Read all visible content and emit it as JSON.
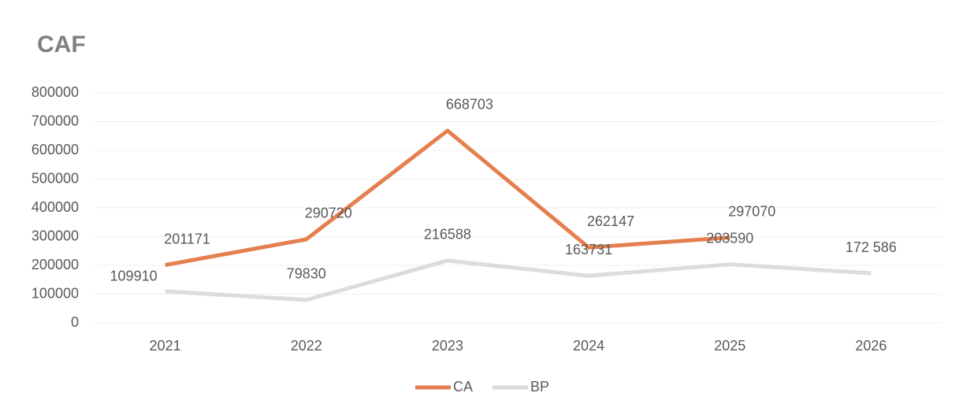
{
  "chart_data": {
    "type": "line",
    "title": "CAF",
    "categories": [
      "2021",
      "2022",
      "2023",
      "2024",
      "2025",
      "2026"
    ],
    "series": [
      {
        "name": "CA",
        "color": "#e4804f",
        "values": [
          201171,
          290720,
          668703,
          262147,
          297070,
          null
        ]
      },
      {
        "name": "BP",
        "color": "#dcdcdc",
        "values": [
          109910,
          79830,
          216588,
          163731,
          203590,
          172586
        ],
        "value_labels": [
          "109910",
          "79830",
          "216588",
          "163731",
          "203590",
          "172 586"
        ]
      }
    ],
    "ylim": [
      0,
      800000
    ],
    "yticks": [
      0,
      100000,
      200000,
      300000,
      400000,
      500000,
      600000,
      700000,
      800000
    ],
    "grid": true,
    "legend": "bottom"
  }
}
